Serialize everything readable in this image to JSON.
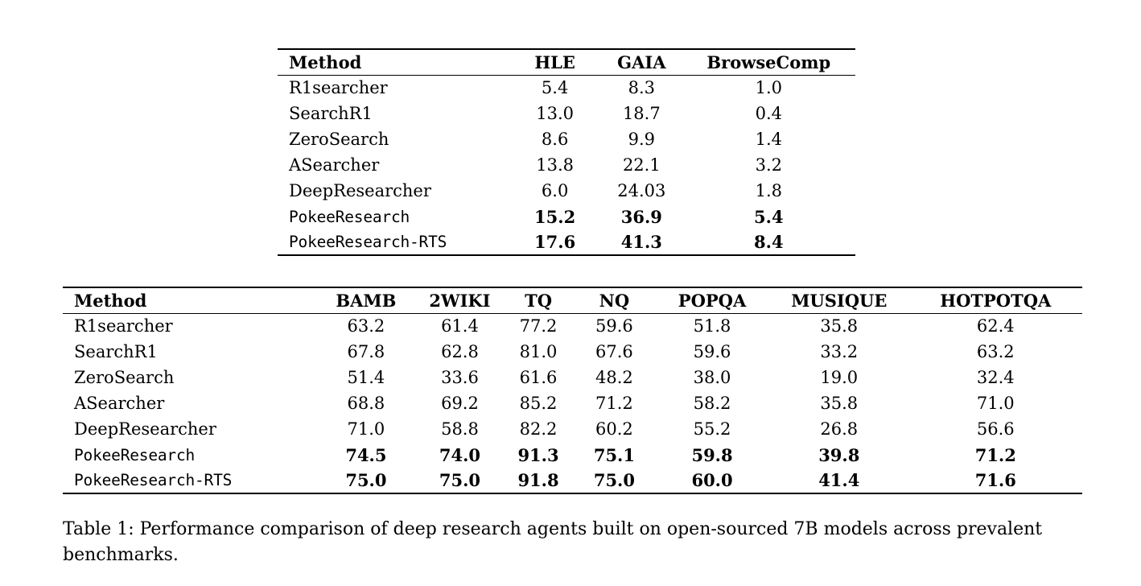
{
  "page": {
    "background": "#ffffff",
    "text_color": "#000000"
  },
  "tables": [
    {
      "name": "benchmark-table-deep-research",
      "columns": [
        "Method",
        "HLE",
        "GAIA",
        "BrowseComp"
      ],
      "rows": [
        {
          "method": "R1searcher",
          "values": [
            "5.4",
            "8.3",
            "1.0"
          ],
          "bold": false,
          "mono": false
        },
        {
          "method": "SearchR1",
          "values": [
            "13.0",
            "18.7",
            "0.4"
          ],
          "bold": false,
          "mono": false
        },
        {
          "method": "ZeroSearch",
          "values": [
            "8.6",
            "9.9",
            "1.4"
          ],
          "bold": false,
          "mono": false
        },
        {
          "method": "ASearcher",
          "values": [
            "13.8",
            "22.1",
            "3.2"
          ],
          "bold": false,
          "mono": false
        },
        {
          "method": "DeepResearcher",
          "values": [
            "6.0",
            "24.03",
            "1.8"
          ],
          "bold": false,
          "mono": false
        },
        {
          "method": "PokeeResearch",
          "values": [
            "15.2",
            "36.9",
            "5.4"
          ],
          "bold": true,
          "mono": true
        },
        {
          "method": "PokeeResearch-RTS",
          "values": [
            "17.6",
            "41.3",
            "8.4"
          ],
          "bold": true,
          "mono": true
        }
      ]
    },
    {
      "name": "benchmark-table-qa",
      "columns": [
        "Method",
        "BAMB",
        "2WIKI",
        "TQ",
        "NQ",
        "POPQA",
        "MUSIQUE",
        "HOTPOTQA"
      ],
      "rows": [
        {
          "method": "R1searcher",
          "values": [
            "63.2",
            "61.4",
            "77.2",
            "59.6",
            "51.8",
            "35.8",
            "62.4"
          ],
          "bold": false,
          "mono": false
        },
        {
          "method": "SearchR1",
          "values": [
            "67.8",
            "62.8",
            "81.0",
            "67.6",
            "59.6",
            "33.2",
            "63.2"
          ],
          "bold": false,
          "mono": false
        },
        {
          "method": "ZeroSearch",
          "values": [
            "51.4",
            "33.6",
            "61.6",
            "48.2",
            "38.0",
            "19.0",
            "32.4"
          ],
          "bold": false,
          "mono": false
        },
        {
          "method": "ASearcher",
          "values": [
            "68.8",
            "69.2",
            "85.2",
            "71.2",
            "58.2",
            "35.8",
            "71.0"
          ],
          "bold": false,
          "mono": false
        },
        {
          "method": "DeepResearcher",
          "values": [
            "71.0",
            "58.8",
            "82.2",
            "60.2",
            "55.2",
            "26.8",
            "56.6"
          ],
          "bold": false,
          "mono": false
        },
        {
          "method": "PokeeResearch",
          "values": [
            "74.5",
            "74.0",
            "91.3",
            "75.1",
            "59.8",
            "39.8",
            "71.2"
          ],
          "bold": true,
          "mono": true
        },
        {
          "method": "PokeeResearch-RTS",
          "values": [
            "75.0",
            "75.0",
            "91.8",
            "75.0",
            "60.0",
            "41.4",
            "71.6"
          ],
          "bold": true,
          "mono": true
        }
      ]
    }
  ],
  "caption": {
    "text": "Table 1: Performance comparison of deep research agents built on open-sourced 7B models across prevalent benchmarks."
  }
}
